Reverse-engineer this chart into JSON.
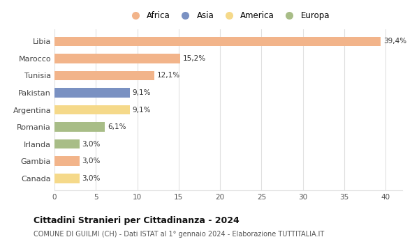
{
  "countries": [
    "Libia",
    "Marocco",
    "Tunisia",
    "Pakistan",
    "Argentina",
    "Romania",
    "Irlanda",
    "Gambia",
    "Canada"
  ],
  "values": [
    39.4,
    15.2,
    12.1,
    9.1,
    9.1,
    6.1,
    3.0,
    3.0,
    3.0
  ],
  "labels": [
    "39,4%",
    "15,2%",
    "12,1%",
    "9,1%",
    "9,1%",
    "6,1%",
    "3,0%",
    "3,0%",
    "3,0%"
  ],
  "colors": [
    "#F2B48A",
    "#F2B48A",
    "#F2B48A",
    "#7A91C2",
    "#F5D98A",
    "#A8BD87",
    "#A8BD87",
    "#F2B48A",
    "#F5D98A"
  ],
  "categories": [
    "Africa",
    "Asia",
    "America",
    "Europa"
  ],
  "legend_colors": [
    "#F2B48A",
    "#7A91C2",
    "#F5D98A",
    "#A8BD87"
  ],
  "title": "Cittadini Stranieri per Cittadinanza - 2024",
  "subtitle": "COMUNE DI GUILMI (CH) - Dati ISTAT al 1° gennaio 2024 - Elaborazione TUTTITALIA.IT",
  "xlim": [
    0,
    42
  ],
  "xticks": [
    0,
    5,
    10,
    15,
    20,
    25,
    30,
    35,
    40
  ],
  "bg_color": "#ffffff",
  "grid_color": "#e0e0e0"
}
